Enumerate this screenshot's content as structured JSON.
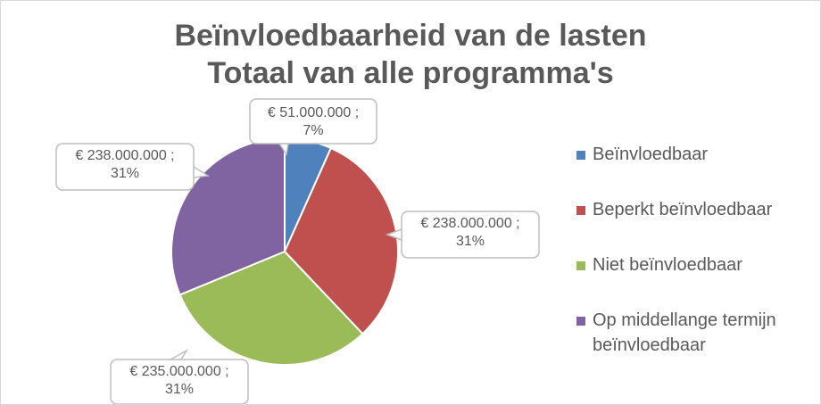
{
  "chart_data": {
    "type": "pie",
    "title": [
      "Beïnvloedbaarheid van de lasten",
      "Totaal van alle programma's"
    ],
    "categories": [
      "Beïnvloedbaar",
      "Beperkt beïnvloedbaar",
      "Niet beïnvloedbaar",
      "Op middellange termijn beïnvloedbaar"
    ],
    "values": [
      51000000,
      238000000,
      235000000,
      238000000
    ],
    "data_labels": [
      {
        "value": "€ 51.000.000 ;",
        "percent": "7%"
      },
      {
        "value": "€ 238.000.000 ;",
        "percent": "31%"
      },
      {
        "value": "€ 235.000.000 ;",
        "percent": "31%"
      },
      {
        "value": "€ 238.000.000 ;",
        "percent": "31%"
      }
    ],
    "colors": [
      "#4f81bd",
      "#c0504d",
      "#9bbb59",
      "#8064a2"
    ],
    "legend_position": "right"
  }
}
